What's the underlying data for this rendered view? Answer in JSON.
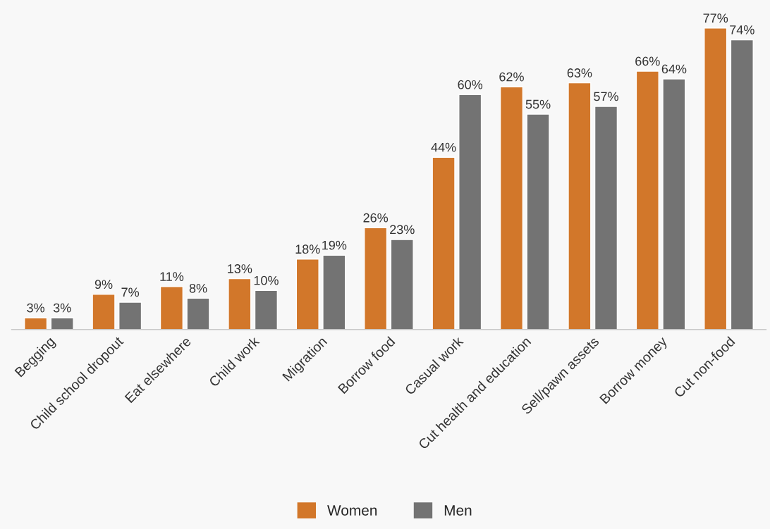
{
  "chart_data": {
    "type": "bar",
    "categories": [
      "Begging",
      "Child school dropout",
      "Eat elsewhere",
      "Child work",
      "Migration",
      "Borrow food",
      "Casual work",
      "Cut health and education",
      "Sell/pawn assets",
      "Borrow money",
      "Cut non-food"
    ],
    "series": [
      {
        "name": "Women",
        "color": "#d2772a",
        "values": [
          3,
          9,
          11,
          13,
          18,
          26,
          44,
          62,
          63,
          66,
          77
        ],
        "value_labels": [
          "3%",
          "9%",
          "11%",
          "13%",
          "18%",
          "26%",
          "44%",
          "62%",
          "63%",
          "66%",
          "77%"
        ]
      },
      {
        "name": "Men",
        "color": "#737373",
        "values": [
          3,
          7,
          8,
          10,
          19,
          23,
          60,
          55,
          57,
          64,
          74
        ],
        "value_labels": [
          "3%",
          "7%",
          "8%",
          "10%",
          "19%",
          "23%",
          "60%",
          "55%",
          "57%",
          "64%",
          "74%"
        ]
      }
    ],
    "legend": "bottom",
    "grid": false
  }
}
